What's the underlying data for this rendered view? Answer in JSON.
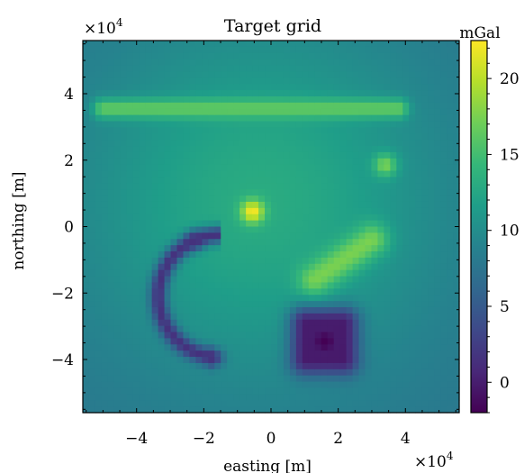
{
  "chart_data": {
    "type": "heatmap",
    "title": "Target grid",
    "xlabel": "easting [m]",
    "ylabel": "northing [m]",
    "x_multiplier_label": "×10^4",
    "y_multiplier_label": "×10^4",
    "xlim": [
      -5.6,
      5.6
    ],
    "ylim": [
      -5.6,
      5.6
    ],
    "x_ticks": [
      -4,
      -2,
      0,
      2,
      4
    ],
    "y_ticks": [
      -4,
      -2,
      0,
      2,
      4
    ],
    "colorbar": {
      "label": "mGal",
      "range": [
        -2,
        22.5
      ],
      "ticks": [
        0,
        5,
        10,
        15,
        20
      ],
      "colormap": "viridis"
    },
    "grid": false,
    "features": [
      {
        "kind": "background_dome",
        "center": [
          -0.3,
          0.8
        ],
        "peak_value": 13.0,
        "edge_value": 7.5
      },
      {
        "kind": "horizontal_bar_high",
        "x_range": [
          -5.0,
          3.8
        ],
        "y": 3.55,
        "value": 16.5
      },
      {
        "kind": "point_high",
        "center": [
          -0.55,
          0.45
        ],
        "value": 22.5
      },
      {
        "kind": "point_high",
        "center": [
          3.4,
          1.85
        ],
        "value": 17.5
      },
      {
        "kind": "elongated_high",
        "from": [
          1.3,
          -1.6
        ],
        "to": [
          3.0,
          -0.4
        ],
        "value": 17.5
      },
      {
        "kind": "crescent_low",
        "center": [
          -1.5,
          -2.1
        ],
        "value": 1.5
      },
      {
        "kind": "square_low",
        "center": [
          1.6,
          -3.45
        ],
        "value": -2.0
      }
    ]
  }
}
